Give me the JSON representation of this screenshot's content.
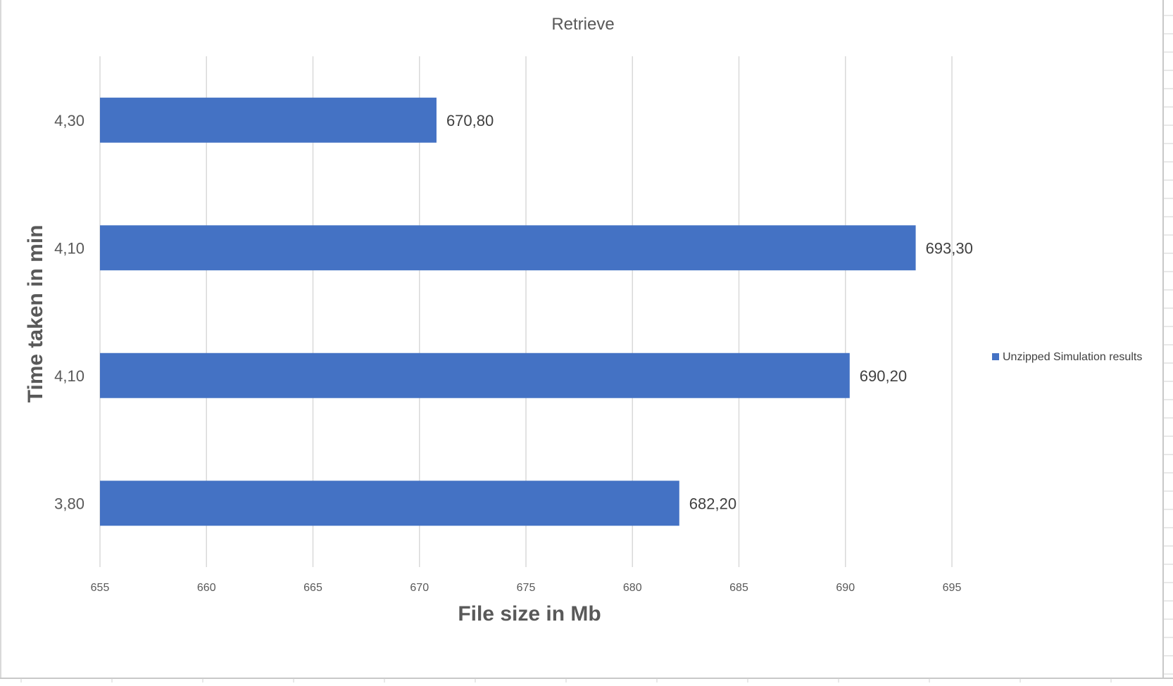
{
  "chart_data": {
    "type": "bar",
    "orientation": "horizontal",
    "title": "Retrieve",
    "xlabel": "File size in Mb",
    "ylabel": "Time taken in min",
    "xlim": [
      655,
      695
    ],
    "xticks": [
      "655",
      "660",
      "665",
      "670",
      "675",
      "680",
      "685",
      "690",
      "695"
    ],
    "categories": [
      "4,30",
      "4,10",
      "4,10",
      "3,80"
    ],
    "series": [
      {
        "name": "Unzipped Simulation results",
        "values": [
          670.8,
          693.3,
          690.2,
          682.2
        ],
        "data_labels": [
          "670,80",
          "693,30",
          "690,20",
          "682,20"
        ],
        "color": "#4472C4"
      }
    ],
    "grid": "vertical",
    "legend": "right"
  }
}
